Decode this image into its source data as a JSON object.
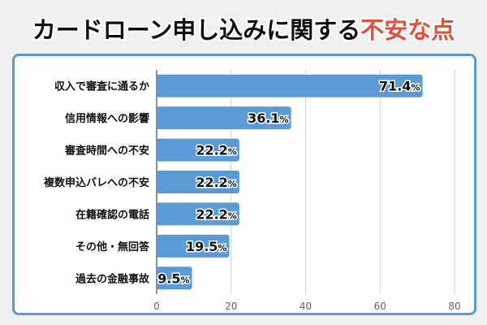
{
  "title": {
    "main": "カードローン申し込みに関する",
    "accent": "不安な点",
    "accent_color": "#e0503c"
  },
  "chart_data": {
    "type": "bar",
    "orientation": "horizontal",
    "title": "カードローン申し込みに関する不安な点",
    "categories": [
      "収入で審査に通るか",
      "信用情報への影響",
      "審査時間への不安",
      "複数申込バレへの不安",
      "在籍確認の電話",
      "その他・無回答",
      "過去の金融事故"
    ],
    "values": [
      71.4,
      36.1,
      22.2,
      22.2,
      22.2,
      19.5,
      9.5
    ],
    "value_suffix": "%",
    "xlim": [
      0,
      80
    ],
    "xticks": [
      "0",
      "20",
      "40",
      "60",
      "80"
    ],
    "xlabel": "",
    "ylabel": "",
    "grid": true,
    "bar_color": "#5b9bd5",
    "frame_color": "#5b9bd5"
  }
}
